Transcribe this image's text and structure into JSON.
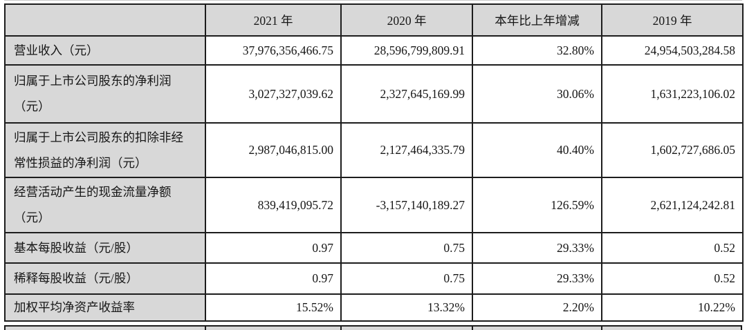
{
  "colors": {
    "header_fill": "#d8d8d8",
    "label_fill": "#d8d8d8",
    "data_fill": "#ffffff",
    "border": "#1c1c1c",
    "text": "#161616"
  },
  "table": {
    "columns": [
      "",
      "2021 年",
      "2020 年",
      "本年比上年增减",
      "2019 年"
    ],
    "rows": [
      {
        "label": "营业收入（元）",
        "y2021": "37,976,356,466.75",
        "y2020": "28,596,799,809.91",
        "change": "32.80%",
        "y2019": "24,954,503,284.58"
      },
      {
        "label": "归属于上市公司股东的净利润\n（元）",
        "y2021": "3,027,327,039.62",
        "y2020": "2,327,645,169.99",
        "change": "30.06%",
        "y2019": "1,631,223,106.02"
      },
      {
        "label": "归属于上市公司股东的扣除非经\n常性损益的净利润（元）",
        "y2021": "2,987,046,815.00",
        "y2020": "2,127,464,335.79",
        "change": "40.40%",
        "y2019": "1,602,727,686.05"
      },
      {
        "label": "经营活动产生的现金流量净额\n（元）",
        "y2021": "839,419,095.72",
        "y2020": "-3,157,140,189.27",
        "change": "126.59%",
        "y2019": "2,621,124,242.81"
      },
      {
        "label": "基本每股收益（元/股）",
        "y2021": "0.97",
        "y2020": "0.75",
        "change": "29.33%",
        "y2019": "0.52"
      },
      {
        "label": "稀释每股收益（元/股）",
        "y2021": "0.97",
        "y2020": "0.75",
        "change": "29.33%",
        "y2019": "0.52"
      },
      {
        "label": "加权平均净资产收益率",
        "y2021": "15.52%",
        "y2020": "13.32%",
        "change": "2.20%",
        "y2019": "10.22%"
      }
    ]
  }
}
